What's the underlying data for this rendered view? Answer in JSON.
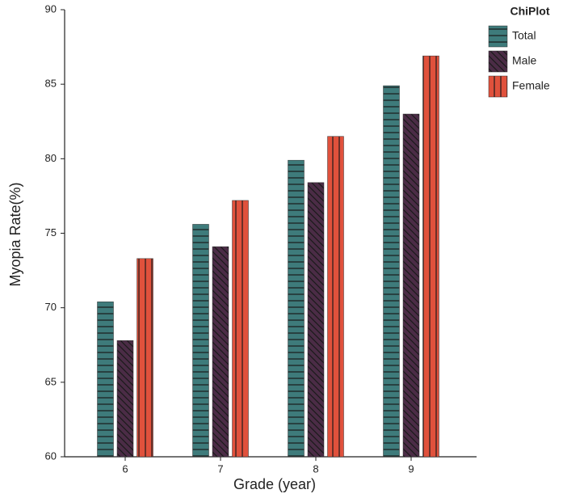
{
  "chart_data": {
    "type": "bar",
    "x_label": "Grade (year)",
    "y_label": "Myopia Rate(%)",
    "legend_title": "ChiPlot",
    "legend_position": "top-right",
    "categories": [
      "6",
      "7",
      "8",
      "9"
    ],
    "series": [
      {
        "name": "Total",
        "color": "#3e7b7b",
        "hatch": "horizontal",
        "values": [
          70.4,
          75.6,
          79.9,
          84.9
        ]
      },
      {
        "name": "Male",
        "color": "#4b2c46",
        "hatch": "diagonal",
        "values": [
          67.8,
          74.1,
          78.4,
          83.0
        ]
      },
      {
        "name": "Female",
        "color": "#e0513c",
        "hatch": "vertical",
        "values": [
          73.3,
          77.2,
          81.5,
          86.9
        ]
      }
    ],
    "ylim": [
      60,
      90
    ],
    "yticks": [
      60,
      65,
      70,
      75,
      80,
      85,
      90
    ]
  }
}
